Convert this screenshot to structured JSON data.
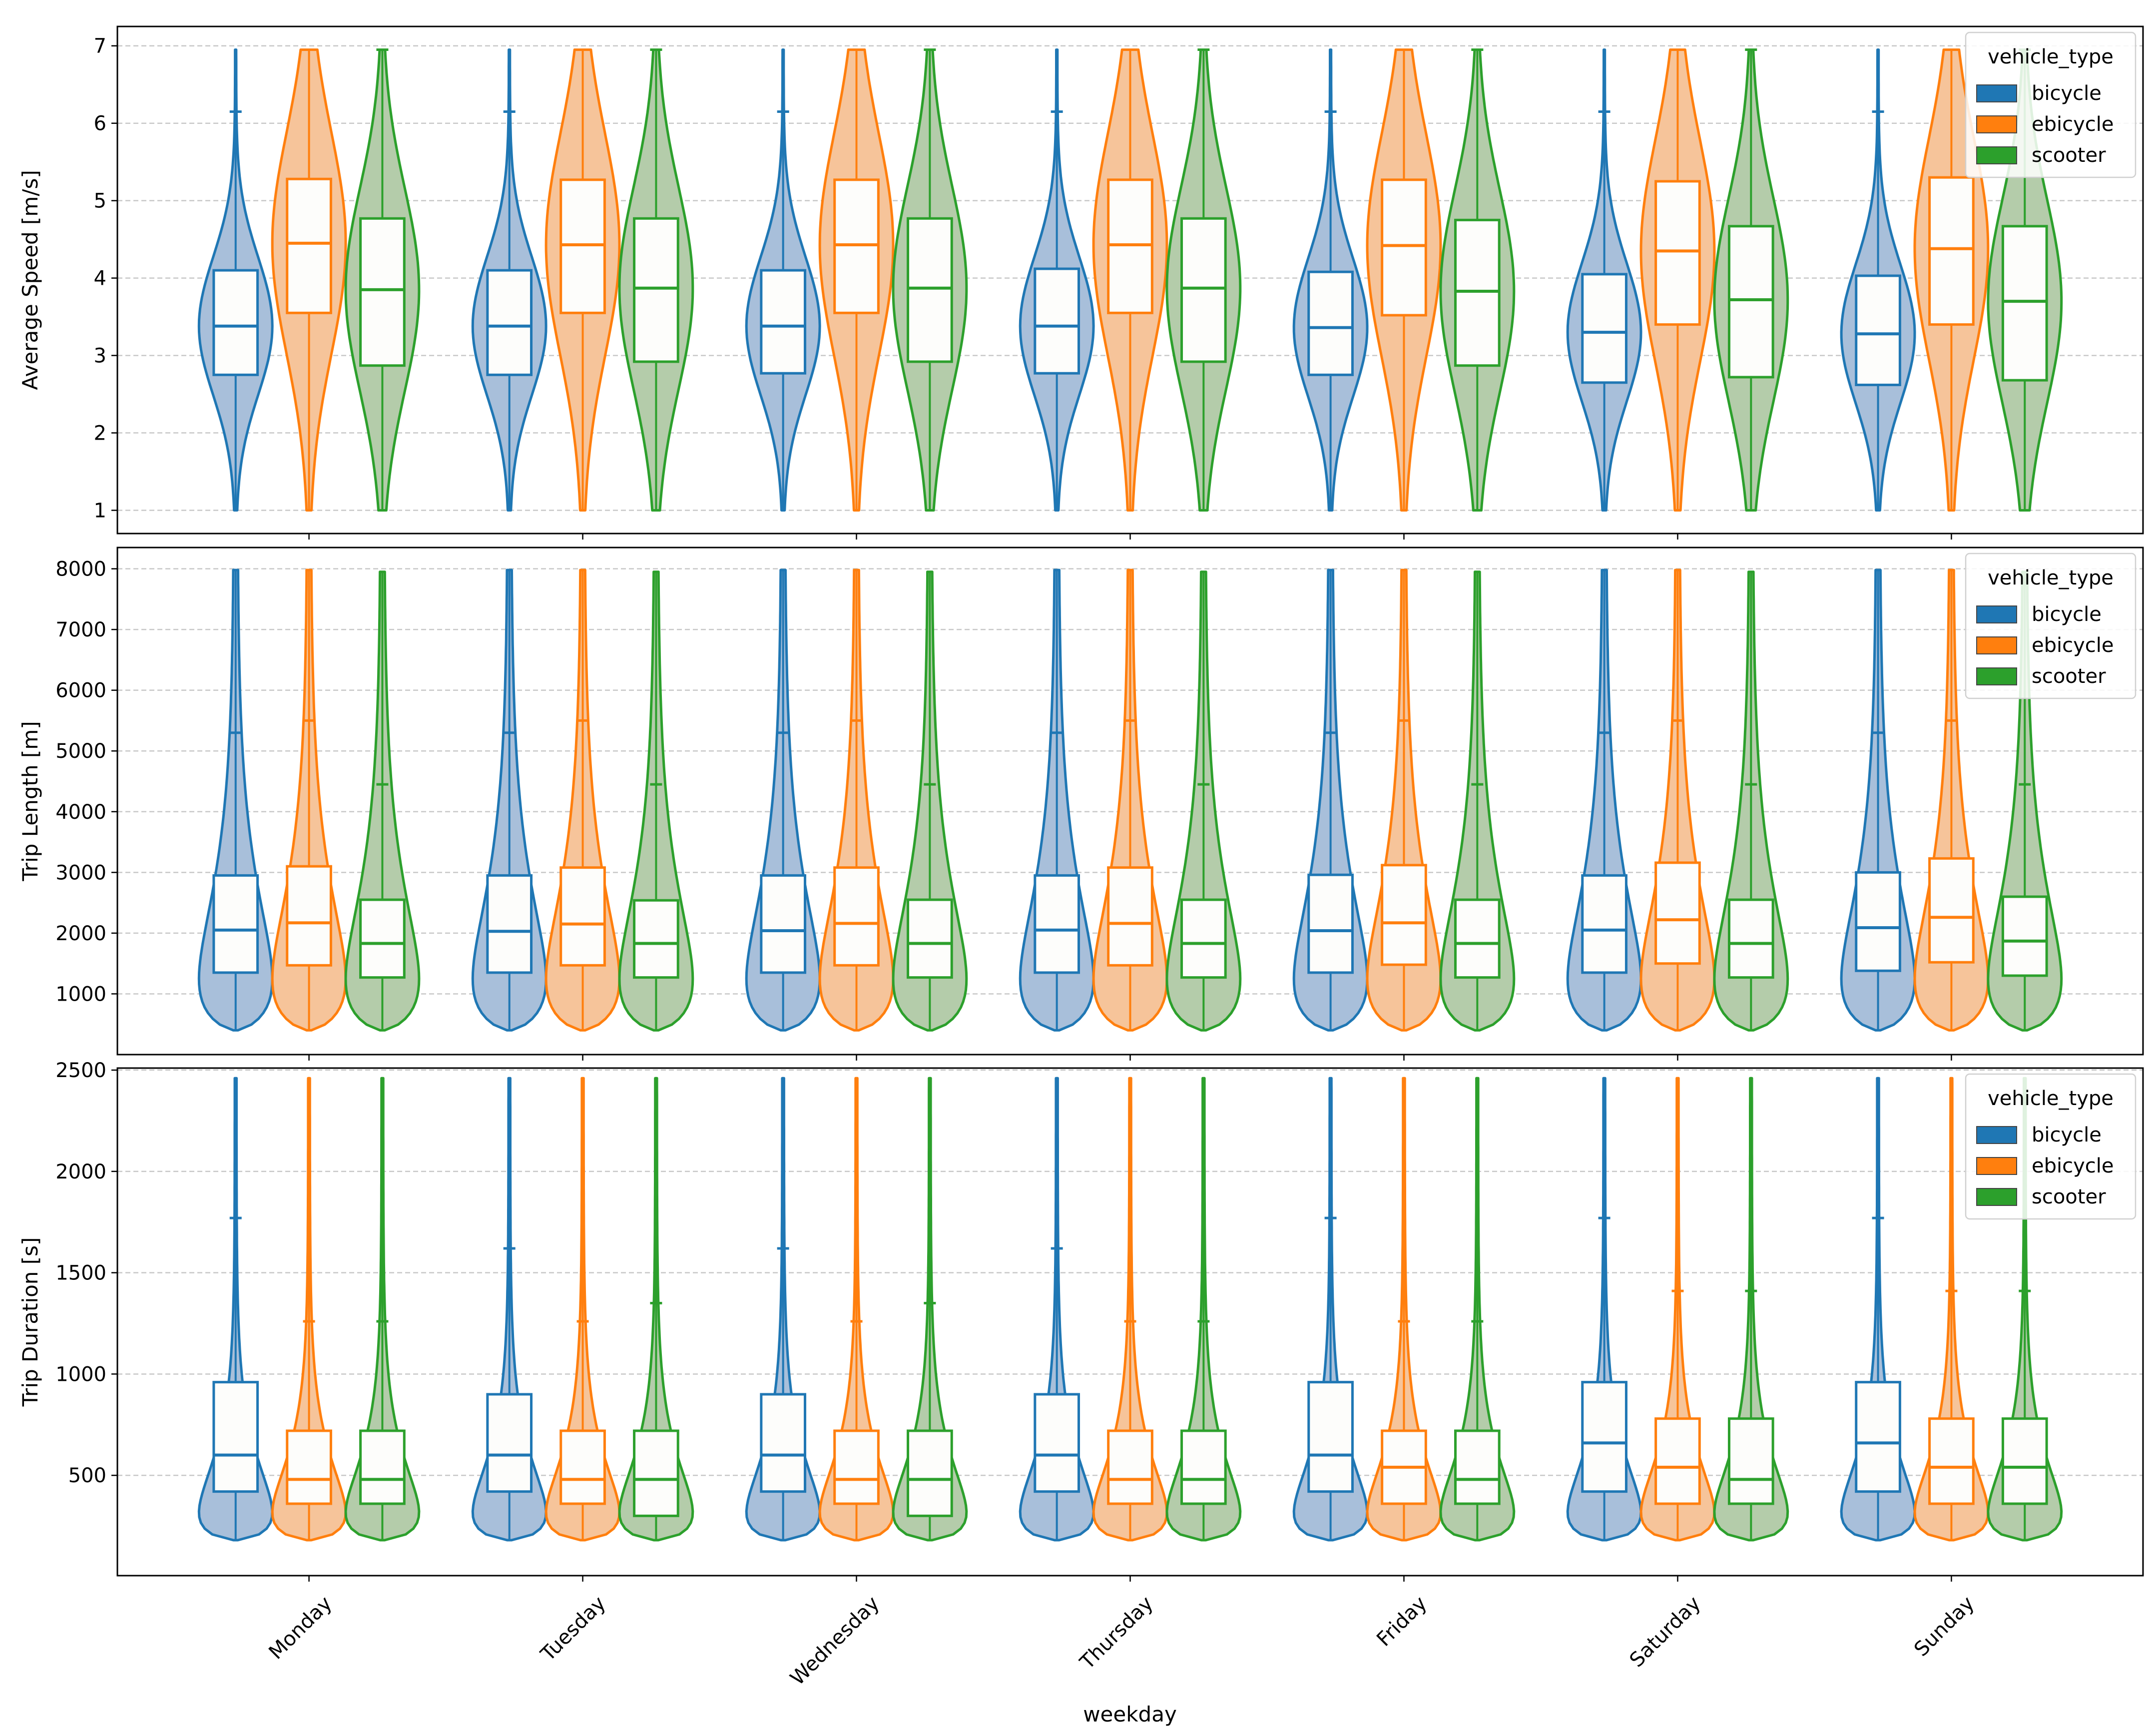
{
  "figure": {
    "xlabel": "weekday",
    "categories": [
      "Monday",
      "Tuesday",
      "Wednesday",
      "Thursday",
      "Friday",
      "Saturday",
      "Sunday"
    ],
    "legend_title": "vehicle_type",
    "legend_placement": "upper-right",
    "grid": "horizontal dashed",
    "colors": {
      "bicycle": {
        "line": "#1f77b4",
        "fill": "#a8bfda"
      },
      "ebicycle": {
        "line": "#ff7f0e",
        "fill": "#f6c49a"
      },
      "scooter": {
        "line": "#2ca02c",
        "fill": "#b4ccaa"
      }
    }
  },
  "chart_data": [
    {
      "type": "violin",
      "ylabel": "Average Speed [m/s]",
      "ylim": [
        0.7,
        7.25
      ],
      "yticks": [
        1,
        2,
        3,
        4,
        5,
        6,
        7
      ],
      "series": [
        {
          "name": "bicycle",
          "min": 1.0,
          "max": 6.95,
          "whisker_cap": 6.15,
          "q1": [
            2.75,
            2.75,
            2.77,
            2.77,
            2.75,
            2.65,
            2.62
          ],
          "median": [
            3.38,
            3.38,
            3.38,
            3.38,
            3.36,
            3.3,
            3.28
          ],
          "q3": [
            4.1,
            4.1,
            4.1,
            4.12,
            4.08,
            4.05,
            4.03
          ]
        },
        {
          "name": "ebicycle",
          "min": 1.0,
          "max": 6.95,
          "whisker_cap": 6.95,
          "q1": [
            3.55,
            3.55,
            3.55,
            3.55,
            3.52,
            3.4,
            3.4
          ],
          "median": [
            4.45,
            4.43,
            4.43,
            4.43,
            4.42,
            4.35,
            4.38
          ],
          "q3": [
            5.28,
            5.27,
            5.27,
            5.27,
            5.27,
            5.25,
            5.3
          ]
        },
        {
          "name": "scooter",
          "min": 1.0,
          "max": 6.95,
          "whisker_cap": 6.95,
          "q1": [
            2.87,
            2.92,
            2.92,
            2.92,
            2.87,
            2.72,
            2.68
          ],
          "median": [
            3.85,
            3.87,
            3.87,
            3.87,
            3.83,
            3.72,
            3.7
          ],
          "q3": [
            4.77,
            4.77,
            4.77,
            4.77,
            4.75,
            4.67,
            4.67
          ]
        }
      ]
    },
    {
      "type": "violin",
      "ylabel": "Trip Length [m]",
      "ylim": [
        0,
        8350
      ],
      "yticks": [
        1000,
        2000,
        3000,
        4000,
        5000,
        6000,
        7000,
        8000
      ],
      "series": [
        {
          "name": "bicycle",
          "min": 400,
          "max": 7980,
          "whisker_cap": 5300,
          "q1": [
            1350,
            1350,
            1350,
            1350,
            1350,
            1350,
            1380
          ],
          "median": [
            2050,
            2030,
            2040,
            2050,
            2040,
            2050,
            2090
          ],
          "q3": [
            2950,
            2950,
            2950,
            2950,
            2960,
            2950,
            3000
          ]
        },
        {
          "name": "ebicycle",
          "min": 400,
          "max": 7980,
          "whisker_cap": 5500,
          "q1": [
            1470,
            1470,
            1470,
            1470,
            1480,
            1500,
            1520
          ],
          "median": [
            2170,
            2150,
            2160,
            2160,
            2170,
            2220,
            2260
          ],
          "q3": [
            3100,
            3080,
            3080,
            3080,
            3120,
            3160,
            3230
          ]
        },
        {
          "name": "scooter",
          "min": 400,
          "max": 7950,
          "whisker_cap": 4450,
          "q1": [
            1270,
            1270,
            1270,
            1270,
            1270,
            1270,
            1300
          ],
          "median": [
            1830,
            1830,
            1830,
            1830,
            1830,
            1830,
            1870
          ],
          "q3": [
            2550,
            2540,
            2550,
            2550,
            2550,
            2550,
            2600
          ]
        }
      ]
    },
    {
      "type": "violin",
      "ylabel": "Trip Duration [s]",
      "ylim": [
        5,
        2510
      ],
      "yticks": [
        500,
        1000,
        1500,
        2000,
        2500
      ],
      "series": [
        {
          "name": "bicycle",
          "min": 180,
          "max": 2460,
          "whisker_cap": [
            1770,
            1620,
            1620,
            1620,
            1770,
            1770,
            1770
          ],
          "q1": [
            420,
            420,
            420,
            420,
            420,
            420,
            420
          ],
          "median": [
            600,
            600,
            600,
            600,
            600,
            660,
            660
          ],
          "q3": [
            960,
            900,
            900,
            900,
            960,
            960,
            960
          ]
        },
        {
          "name": "ebicycle",
          "min": 180,
          "max": 2460,
          "whisker_cap": [
            1260,
            1260,
            1260,
            1260,
            1260,
            1410,
            1410
          ],
          "q1": [
            360,
            360,
            360,
            360,
            360,
            360,
            360
          ],
          "median": [
            480,
            480,
            480,
            480,
            540,
            540,
            540
          ],
          "q3": [
            720,
            720,
            720,
            720,
            720,
            780,
            780
          ]
        },
        {
          "name": "scooter",
          "min": 180,
          "max": 2460,
          "whisker_cap": [
            1260,
            1350,
            1350,
            1260,
            1260,
            1410,
            1410
          ],
          "q1": [
            360,
            300,
            300,
            360,
            360,
            360,
            360
          ],
          "median": [
            480,
            480,
            480,
            480,
            480,
            480,
            540
          ],
          "q3": [
            720,
            720,
            720,
            720,
            720,
            780,
            780
          ]
        }
      ]
    }
  ]
}
